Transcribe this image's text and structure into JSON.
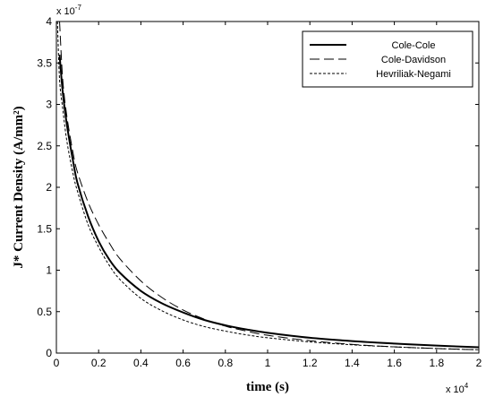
{
  "chart_data": {
    "type": "line",
    "xlabel": "time (s)",
    "ylabel": "J* Current Density (A/mm²)",
    "x_multiplier": "x 10",
    "x_exponent": "4",
    "y_multiplier": "x 10",
    "y_exponent": "-7",
    "xlim": [
      0,
      20000
    ],
    "ylim": [
      0,
      4e-07
    ],
    "x_ticks": [
      0,
      2000,
      4000,
      6000,
      8000,
      10000,
      12000,
      14000,
      16000,
      18000,
      20000
    ],
    "x_tick_labels": [
      "0",
      "0.2",
      "0.4",
      "0.6",
      "0.8",
      "1",
      "1.2",
      "1.4",
      "1.6",
      "1.8",
      "2"
    ],
    "y_ticks": [
      0,
      5e-08,
      1e-07,
      1.5e-07,
      2e-07,
      2.5e-07,
      3e-07,
      3.5e-07,
      4e-07
    ],
    "y_tick_labels": [
      "0",
      "0.5",
      "1",
      "1.5",
      "2",
      "2.5",
      "3",
      "3.5",
      "4"
    ],
    "grid": false,
    "legend_position": "top-right",
    "series": [
      {
        "name": "Cole-Cole",
        "style": "solid",
        "x": [
          150,
          300,
          500,
          800,
          1000,
          1500,
          2000,
          2500,
          3000,
          4000,
          5000,
          6000,
          7000,
          8000,
          9000,
          10000,
          12000,
          14000,
          16000,
          18000,
          20000
        ],
        "y": [
          3.6e-07,
          3.15e-07,
          2.75e-07,
          2.3e-07,
          2.05e-07,
          1.65e-07,
          1.35e-07,
          1.13e-07,
          9.7e-08,
          7.5e-08,
          6e-08,
          4.9e-08,
          4e-08,
          3.35e-08,
          2.85e-08,
          2.45e-08,
          1.85e-08,
          1.45e-08,
          1.15e-08,
          9e-09,
          7e-09
        ]
      },
      {
        "name": "Cole-Davidson",
        "style": "dashed",
        "x": [
          150,
          300,
          500,
          800,
          1000,
          1500,
          2000,
          2500,
          3000,
          4000,
          5000,
          6000,
          7000,
          8000,
          9000,
          10000,
          12000,
          14000,
          16000,
          18000,
          20000
        ],
        "y": [
          4e-07,
          3.3e-07,
          2.85e-07,
          2.4e-07,
          2.18e-07,
          1.82e-07,
          1.55e-07,
          1.33e-07,
          1.14e-07,
          8.7e-08,
          6.7e-08,
          5.2e-08,
          4.1e-08,
          3.25e-08,
          2.65e-08,
          2.15e-08,
          1.5e-08,
          1.05e-08,
          7.5e-09,
          5.5e-09,
          4e-09
        ]
      },
      {
        "name": "Hevriliak-Negami",
        "style": "dotted",
        "x": [
          50,
          150,
          300,
          500,
          800,
          1000,
          1500,
          2000,
          2500,
          3000,
          4000,
          5000,
          6000,
          7000,
          8000,
          9000,
          10000,
          12000,
          14000,
          16000,
          18000,
          20000
        ],
        "y": [
          4e-07,
          3.3e-07,
          2.95e-07,
          2.55e-07,
          2.15e-07,
          1.95e-07,
          1.55e-07,
          1.28e-07,
          1.06e-07,
          8.9e-08,
          6.6e-08,
          5.1e-08,
          4e-08,
          3.2e-08,
          2.65e-08,
          2.2e-08,
          1.85e-08,
          1.35e-08,
          1e-08,
          7.5e-09,
          5.5e-09,
          4e-09
        ]
      }
    ]
  }
}
